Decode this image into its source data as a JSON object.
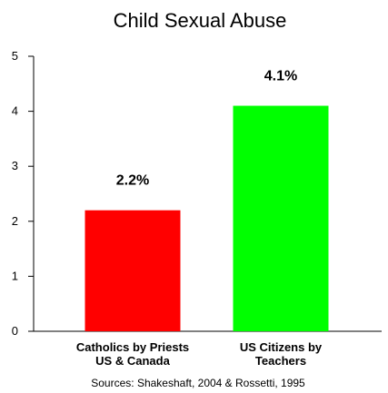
{
  "chart_data": {
    "type": "bar",
    "title": "Child Sexual Abuse",
    "categories": [
      [
        "Catholics by Priests",
        "US & Canada"
      ],
      [
        "US Citizens by",
        "Teachers"
      ]
    ],
    "values": [
      2.2,
      4.1
    ],
    "data_labels": [
      "2.2%",
      "4.1%"
    ],
    "colors": [
      "#ff0000",
      "#00ff00"
    ],
    "ylim": [
      0,
      5
    ],
    "yticks": [
      0,
      1,
      2,
      3,
      4,
      5
    ],
    "grid": false,
    "source": "Sources: Shakeshaft, 2004 & Rossetti, 1995"
  }
}
